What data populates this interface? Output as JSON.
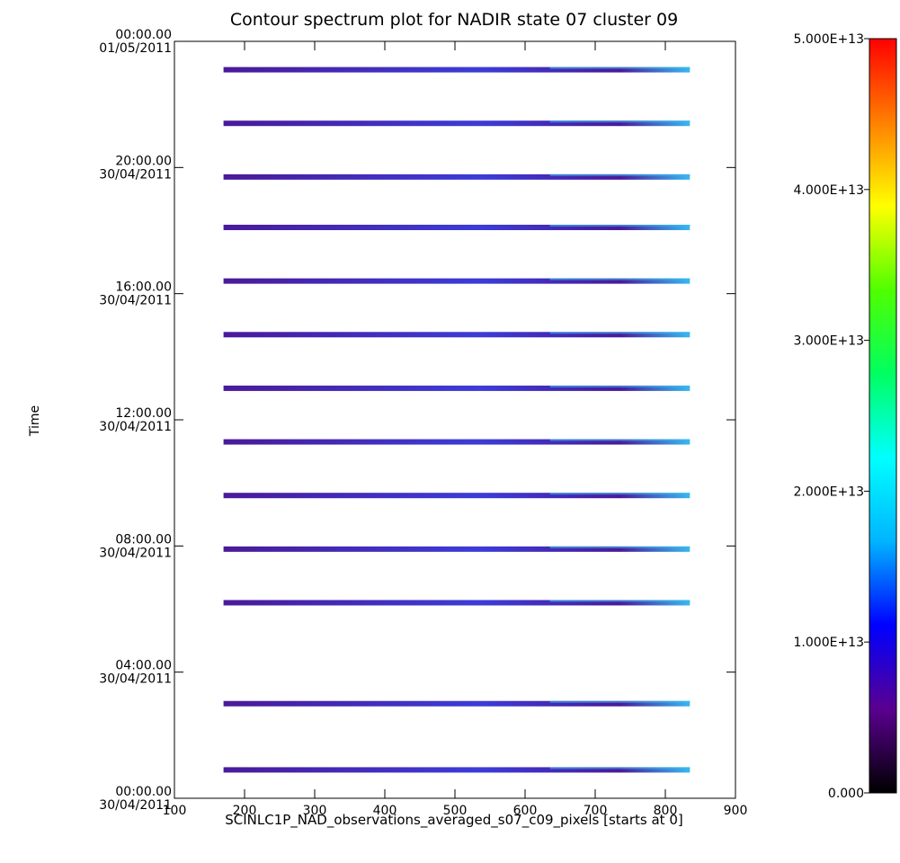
{
  "chart_data": {
    "type": "heatmap",
    "title": "Contour spectrum plot for NADIR state 07 cluster 09",
    "xlabel": "SCINLC1P_NAD_observations_averaged_s07_c09_pixels [starts at 0]",
    "ylabel": "Time",
    "xlim": [
      100,
      900
    ],
    "x_ticks": [
      100,
      200,
      300,
      400,
      500,
      600,
      700,
      800,
      900
    ],
    "y_range_hours": [
      0,
      24
    ],
    "y_ticks": [
      {
        "hours": 0,
        "time": "00:00.00",
        "date": "30/04/2011"
      },
      {
        "hours": 4,
        "time": "04:00.00",
        "date": "30/04/2011"
      },
      {
        "hours": 8,
        "time": "08:00.00",
        "date": "30/04/2011"
      },
      {
        "hours": 12,
        "time": "12:00.00",
        "date": "30/04/2011"
      },
      {
        "hours": 16,
        "time": "16:00.00",
        "date": "30/04/2011"
      },
      {
        "hours": 20,
        "time": "20:00.00",
        "date": "30/04/2011"
      },
      {
        "hours": 24,
        "time": "00:00.00",
        "date": "01/05/2011"
      }
    ],
    "colorbar": {
      "min": 0,
      "max": 50000000000000.0,
      "tick_labels": [
        "0.000",
        "1.000E+13",
        "2.000E+13",
        "3.000E+13",
        "4.000E+13",
        "5.000E+13"
      ],
      "tick_values": [
        0,
        10000000000000.0,
        20000000000000.0,
        30000000000000.0,
        40000000000000.0,
        50000000000000.0
      ],
      "colors": [
        "#000000",
        "#5a0090",
        "#0000ff",
        "#00b4ff",
        "#00ffff",
        "#00ff60",
        "#50ff00",
        "#ffff00",
        "#ff8000",
        "#ff0000"
      ]
    },
    "orbit_x_range": [
      170,
      835
    ],
    "orbits_hours": [
      0.9,
      3.0,
      6.2,
      7.9,
      9.6,
      11.3,
      13.0,
      14.7,
      16.4,
      18.1,
      19.7,
      21.4,
      23.1
    ],
    "band_colors": {
      "low": "#4a1a9a",
      "mid": "#3c3cd8",
      "high": "#38b8f0"
    }
  }
}
